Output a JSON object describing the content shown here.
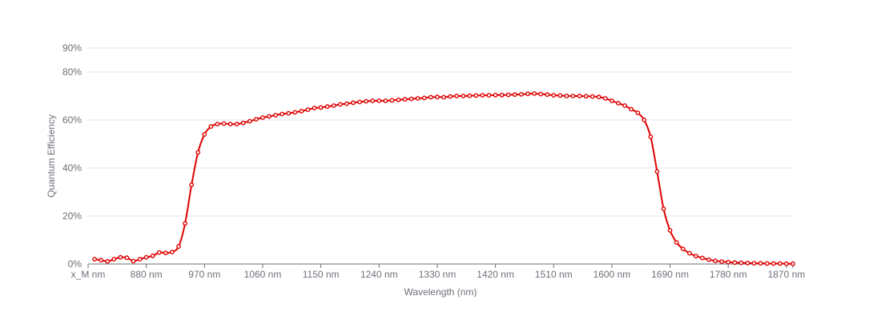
{
  "chart_data": {
    "type": "line",
    "xlabel": "Wavelength (nm)",
    "ylabel": "Quantum Efficiency",
    "x_tick_labels": [
      "x_M nm",
      "880 nm",
      "970 nm",
      "1060 nm",
      "1150 nm",
      "1240 nm",
      "1330 nm",
      "1420 nm",
      "1510 nm",
      "1600 nm",
      "1690 nm",
      "1780 nm",
      "1870 nm"
    ],
    "y_ticks": [
      0,
      20,
      40,
      60,
      80,
      90
    ],
    "y_tick_labels": [
      "0%",
      "20%",
      "40%",
      "60%",
      "80%",
      "90%"
    ],
    "xlim": [
      810,
      1900
    ],
    "ylim": [
      0,
      90
    ],
    "grid": true,
    "line_color": "#e00000",
    "series": [
      {
        "x": [
          820,
          830,
          840,
          850,
          860,
          870,
          880,
          890,
          900,
          910,
          920,
          930,
          940,
          950,
          960,
          970,
          980,
          990,
          1000,
          1010,
          1020,
          1030,
          1040,
          1050,
          1060,
          1070,
          1080,
          1090,
          1100,
          1110,
          1120,
          1130,
          1140,
          1150,
          1160,
          1170,
          1180,
          1190,
          1200,
          1210,
          1220,
          1230,
          1240,
          1250,
          1260,
          1270,
          1280,
          1290,
          1300,
          1310,
          1320,
          1330,
          1340,
          1350,
          1360,
          1370,
          1380,
          1390,
          1400,
          1410,
          1420,
          1430,
          1440,
          1450,
          1460,
          1470,
          1480,
          1490,
          1500,
          1510,
          1520,
          1530,
          1540,
          1550,
          1560,
          1570,
          1580,
          1590,
          1600,
          1610,
          1620,
          1630,
          1640,
          1650,
          1660,
          1670,
          1680,
          1690,
          1700,
          1710,
          1720,
          1730,
          1740,
          1750,
          1760,
          1770,
          1780,
          1790,
          1800,
          1810,
          1820,
          1830,
          1840,
          1850,
          1860,
          1870,
          1880,
          1890,
          1900
        ],
        "y": [
          2.0,
          1.6,
          1.1,
          2.0,
          2.8,
          2.6,
          1.2,
          2.0,
          2.8,
          3.4,
          4.8,
          4.6,
          5.0,
          7.3,
          16.9,
          33.0,
          46.5,
          54.0,
          57.3,
          58.3,
          58.5,
          58.3,
          58.3,
          58.8,
          59.5,
          60.3,
          61.0,
          61.5,
          62.0,
          62.5,
          62.8,
          63.2,
          63.7,
          64.3,
          65.0,
          65.2,
          65.6,
          66.0,
          66.5,
          66.8,
          67.2,
          67.5,
          67.8,
          68.0,
          68.0,
          68.0,
          68.2,
          68.4,
          68.6,
          68.8,
          69.0,
          69.2,
          69.5,
          69.6,
          69.5,
          69.8,
          70.0,
          70.0,
          70.1,
          70.2,
          70.3,
          70.3,
          70.4,
          70.4,
          70.5,
          70.6,
          70.7,
          70.9,
          71.0,
          70.8,
          70.6,
          70.3,
          70.2,
          70.0,
          70.0,
          70.0,
          69.9,
          69.8,
          69.6,
          69.0,
          68.0,
          67.0,
          66.0,
          64.5,
          63.0,
          60.0,
          53.0,
          38.5,
          23.0,
          14.0,
          9.0,
          6.3,
          4.5,
          3.3,
          2.5,
          1.8,
          1.3,
          1.0,
          0.8,
          0.6,
          0.5,
          0.4,
          0.3,
          0.3,
          0.2,
          0.2,
          0.2,
          0.1,
          0.1
        ]
      }
    ]
  }
}
